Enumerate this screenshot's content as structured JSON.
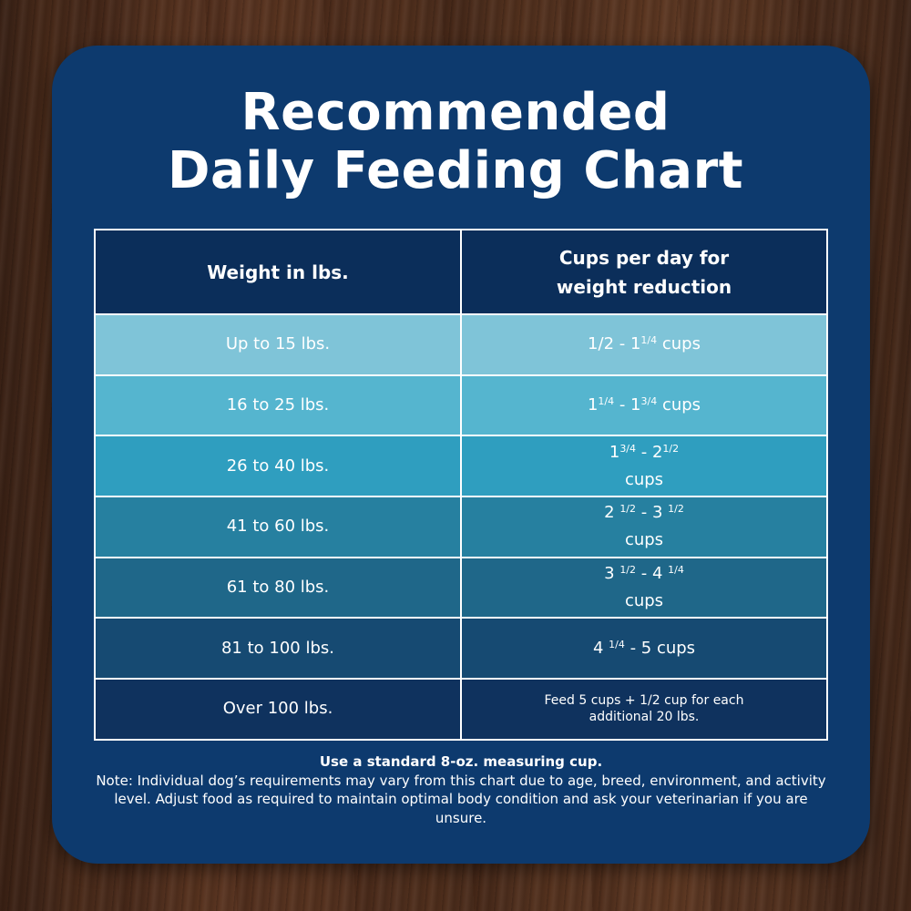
{
  "title": {
    "line1": "Recommended",
    "line2": "Daily Feeding Chart"
  },
  "colors": {
    "card": "#0d3a6e",
    "header": "#0b2e5a",
    "rows": [
      "#7fc4d8",
      "#55b5cf",
      "#2f9ebf",
      "#2680a0",
      "#1f6789",
      "#164a72",
      "#0f325e"
    ]
  },
  "chart_data": {
    "type": "table",
    "columns": [
      "Weight in lbs.",
      "Cups per day for weight reduction"
    ],
    "rows": [
      {
        "weight": "Up to 15 lbs.",
        "cups": {
          "a": "1/2 - 1",
          "a_sup": "1/4",
          "b": "",
          "b_sup": "",
          "unit": "cups"
        }
      },
      {
        "weight": "16 to 25 lbs.",
        "cups": {
          "a": "1",
          "a_sup": "1/4",
          "b": "- 1",
          "b_sup": "3/4",
          "unit": "cups"
        }
      },
      {
        "weight": "26 to 40 lbs.",
        "cups": {
          "a": "1",
          "a_sup": "3/4",
          "b": "- 2",
          "b_sup": "1/2",
          "unit": "cups"
        }
      },
      {
        "weight": "41 to 60 lbs.",
        "cups": {
          "a": "2",
          "a_sup": "1/2",
          "b": "- 3",
          "b_sup": "1/2",
          "unit": "cups"
        }
      },
      {
        "weight": "61 to 80 lbs.",
        "cups": {
          "a": "3",
          "a_sup": "1/2",
          "b": "- 4",
          "b_sup": "1/4",
          "unit": "cups"
        }
      },
      {
        "weight": "81 to 100 lbs.",
        "cups": {
          "a": "4",
          "a_sup": "1/4",
          "b": "- 5 cups",
          "b_sup": "",
          "unit": ""
        }
      },
      {
        "weight": "Over 100 lbs.",
        "cups": {
          "text": "Feed 5 cups + 1/2 cup for each additional 20 lbs."
        }
      }
    ]
  },
  "notes": {
    "line1": "Use a standard 8-oz. measuring cup.",
    "line2": "Note: Individual dog’s requirements may vary from this chart due to age, breed, environment, and activity level. Adjust food as required to maintain optimal body condition and ask your veterinarian if you are unsure."
  }
}
